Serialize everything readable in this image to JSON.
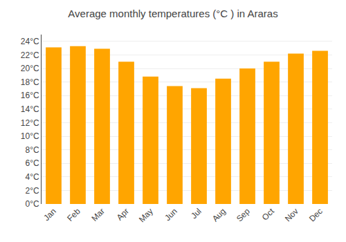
{
  "chart_data": {
    "type": "bar",
    "title": "Average monthly temperatures (°C ) in Araras",
    "categories": [
      "Jan",
      "Feb",
      "Mar",
      "Apr",
      "May",
      "Jun",
      "Jul",
      "Aug",
      "Sep",
      "Oct",
      "Nov",
      "Dec"
    ],
    "values": [
      23.1,
      23.3,
      22.9,
      21.0,
      18.8,
      17.4,
      17.1,
      18.5,
      20.0,
      21.0,
      22.2,
      22.6
    ],
    "color": "#FFA500",
    "ylim": [
      0,
      25
    ],
    "yticks": [
      {
        "value": 0,
        "label": "0°C"
      },
      {
        "value": 2,
        "label": "2°C"
      },
      {
        "value": 4,
        "label": "4°C"
      },
      {
        "value": 6,
        "label": "6°C"
      },
      {
        "value": 8,
        "label": "8°C"
      },
      {
        "value": 10,
        "label": "10°C"
      },
      {
        "value": 12,
        "label": "12°C"
      },
      {
        "value": 14,
        "label": "14°C"
      },
      {
        "value": 16,
        "label": "16°C"
      },
      {
        "value": 18,
        "label": "18°C"
      },
      {
        "value": 20,
        "label": "20°C"
      },
      {
        "value": 22,
        "label": "22°C"
      },
      {
        "value": 24,
        "label": "24°C"
      }
    ],
    "grid": true
  }
}
